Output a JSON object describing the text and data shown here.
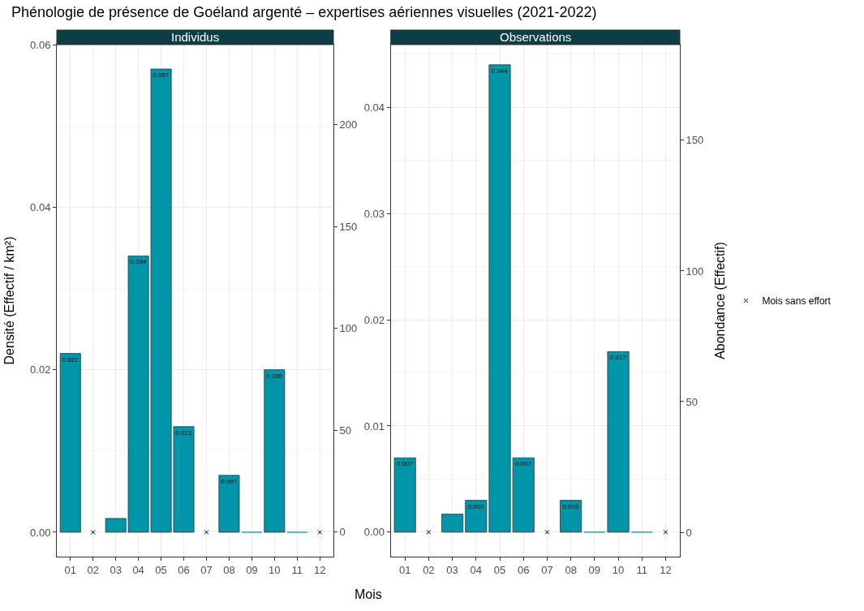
{
  "chart_data": [
    {
      "type": "bar",
      "title": "Phénologie de présence de Goéland argenté – expertises aériennes visuelles (2021-2022)",
      "subtitle": "Individus",
      "xlabel": "Mois",
      "ylabel": "Densité (Effectif / km²)",
      "categories": [
        "01",
        "02",
        "03",
        "04",
        "05",
        "06",
        "07",
        "08",
        "09",
        "10",
        "11",
        "12"
      ],
      "series": [
        {
          "color": "#0095a8",
          "values": [
            0.022,
            null,
            0.0017,
            0.034,
            0.057,
            0.013,
            null,
            0.007,
            0,
            0.02,
            0,
            null
          ],
          "value_labels": [
            "0.022",
            null,
            null,
            "0.034",
            "0.057",
            "0.013",
            null,
            "0.007",
            null,
            "0.020",
            null,
            null
          ]
        },
        {
          "type": "scatter",
          "color": "#000000",
          "marker": "cross",
          "x": [
            "02",
            "07",
            "12"
          ],
          "values": [
            0,
            0,
            0
          ]
        }
      ],
      "ylim": [
        -0.003,
        0.06
      ],
      "yticks": [
        {
          "value": 0,
          "label": "0.00"
        },
        {
          "value": 0.02,
          "label": "0.02"
        },
        {
          "value": 0.04,
          "label": "0.04"
        },
        {
          "value": 0.06,
          "label": "0.06"
        }
      ],
      "y2lim": [
        -12,
        239.4
      ],
      "y2ticks": [
        0,
        50,
        100,
        150,
        200
      ],
      "grid": true,
      "legend": false
    },
    {
      "type": "bar",
      "subtitle": "Observations",
      "y2label": "Abondance (Effectif)",
      "categories": [
        "01",
        "02",
        "03",
        "04",
        "05",
        "06",
        "07",
        "08",
        "09",
        "10",
        "11",
        "12"
      ],
      "series": [
        {
          "color": "#0095a8",
          "values": [
            0.007,
            null,
            0.0017,
            0.003,
            0.044,
            0.007,
            null,
            0.003,
            0,
            0.017,
            0,
            null
          ],
          "value_labels": [
            "0.007",
            null,
            null,
            "0.003",
            "0.044",
            "0.007",
            null,
            "0.003",
            null,
            "0.017",
            null,
            null
          ]
        },
        {
          "type": "scatter",
          "name": "Mois sans effort",
          "color": "#000000",
          "marker": "cross",
          "x": [
            "02",
            "07",
            "12"
          ],
          "values": [
            0,
            0,
            0
          ]
        }
      ],
      "ylim": [
        -0.0023,
        0.0459
      ],
      "yticks": [
        {
          "value": 0,
          "label": "0.00"
        },
        {
          "value": 0.01,
          "label": "0.01"
        },
        {
          "value": 0.02,
          "label": "0.02"
        },
        {
          "value": 0.03,
          "label": "0.03"
        },
        {
          "value": 0.04,
          "label": "0.04"
        }
      ],
      "y2lim": [
        -9.3,
        186.6
      ],
      "y2ticks": [
        0,
        50,
        100,
        150
      ],
      "grid": true,
      "legend": "right"
    }
  ]
}
